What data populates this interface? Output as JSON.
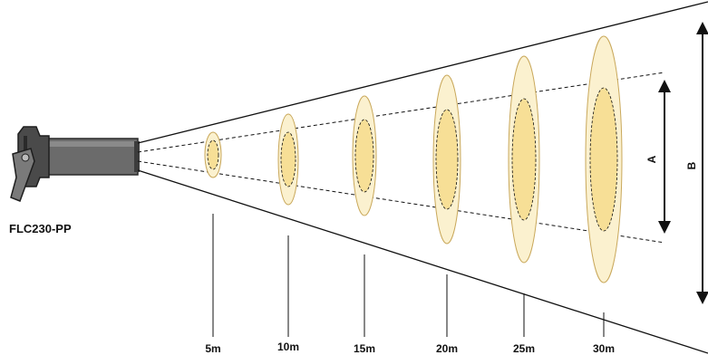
{
  "product": {
    "model": "FLC230-PP"
  },
  "distances": [
    {
      "label": "5m"
    },
    {
      "label": "10m"
    },
    {
      "label": "15m"
    },
    {
      "label": "20m"
    },
    {
      "label": "25m"
    },
    {
      "label": "30m"
    }
  ],
  "dimensions": {
    "inner_label": "A",
    "outer_label": "B"
  },
  "colors": {
    "outer_fill": "#fbf1cf",
    "inner_fill": "#f7df96",
    "spot_stroke": "#c9a85b",
    "lines": "#111111",
    "lamp_body": "#555555"
  }
}
